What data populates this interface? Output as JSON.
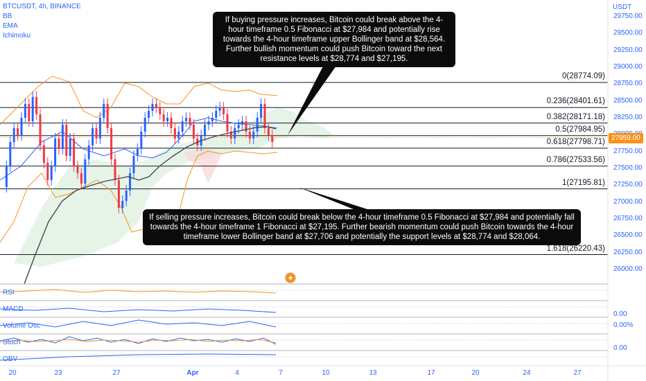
{
  "legend": {
    "symbol": "BTCUSDT, 4h, BINANCE",
    "indicators": [
      "BB",
      "EMA",
      "Ichimoku"
    ]
  },
  "price_axis": {
    "unit": "USDT",
    "labels": [
      "29750.00",
      "29500.00",
      "29250.00",
      "29000.00",
      "28750.00",
      "28500.00",
      "28250.00",
      "28000.00",
      "27750.00",
      "27500.00",
      "27250.00",
      "27000.00",
      "26750.00",
      "26500.00",
      "26250.00",
      "26000.00"
    ],
    "current_price": "27959.00"
  },
  "fib_levels": [
    {
      "label": "0(28774.09)",
      "price": 28774.09
    },
    {
      "label": "0.236(28401.61)",
      "price": 28401.61
    },
    {
      "label": "0.382(28171.18)",
      "price": 28171.18
    },
    {
      "label": "0.5(27984.95)",
      "price": 27984.95
    },
    {
      "label": "0.618(27798.71)",
      "price": 27798.71
    },
    {
      "label": "0.786(27533.56)",
      "price": 27533.56
    },
    {
      "label": "1(27195.81)",
      "price": 27195.81
    },
    {
      "label": "1.618(26220.43)",
      "price": 26220.43
    }
  ],
  "notes": {
    "bullish": "If buying pressure increases, Bitcoin could break above the 4-hour timeframe 0.5 Fibonacci at $27,984 and potentially rise towards the 4-hour timeframe upper Bollinger band at $28,564. Further bullish momentum could push Bitcoin toward the next resistance levels at $28,774 and $27,195.",
    "bearish": "If selling pressure increases, Bitcoin could break below the 4-hour timeframe 0.5 Fibonacci at $27,984 and potentially fall towards the 4-hour timeframe 1 Fibonacci at $27,195. Further bearish momentum could push Bitcoin towards the 4-hour timeframe lower Bollinger band at $27,706 and potentially the support levels at $28,774 and $28,064."
  },
  "indicators": {
    "rsi": {
      "label": "RSI"
    },
    "macd": {
      "label": "MACD",
      "value": "0.00"
    },
    "volume_osc": {
      "label": "Volume Osc",
      "value": "0.00%"
    },
    "stoch": {
      "label": "Stoch",
      "value": "0.00"
    },
    "obv": {
      "label": "OBV"
    }
  },
  "date_axis": [
    {
      "label": "20",
      "bold": false
    },
    {
      "label": "23",
      "bold": false
    },
    {
      "label": "27",
      "bold": false
    },
    {
      "label": "Apr",
      "bold": true
    },
    {
      "label": "4",
      "bold": false
    },
    {
      "label": "7",
      "bold": false
    },
    {
      "label": "10",
      "bold": false
    },
    {
      "label": "13",
      "bold": false
    },
    {
      "label": "17",
      "bold": false
    },
    {
      "label": "20",
      "bold": false
    },
    {
      "label": "24",
      "bold": false
    },
    {
      "label": "27",
      "bold": false
    }
  ],
  "colors": {
    "up": "#2962ff",
    "down": "#f23645",
    "bb": "#f7931a",
    "ema": "#434651",
    "accent": "#2962ff"
  }
}
